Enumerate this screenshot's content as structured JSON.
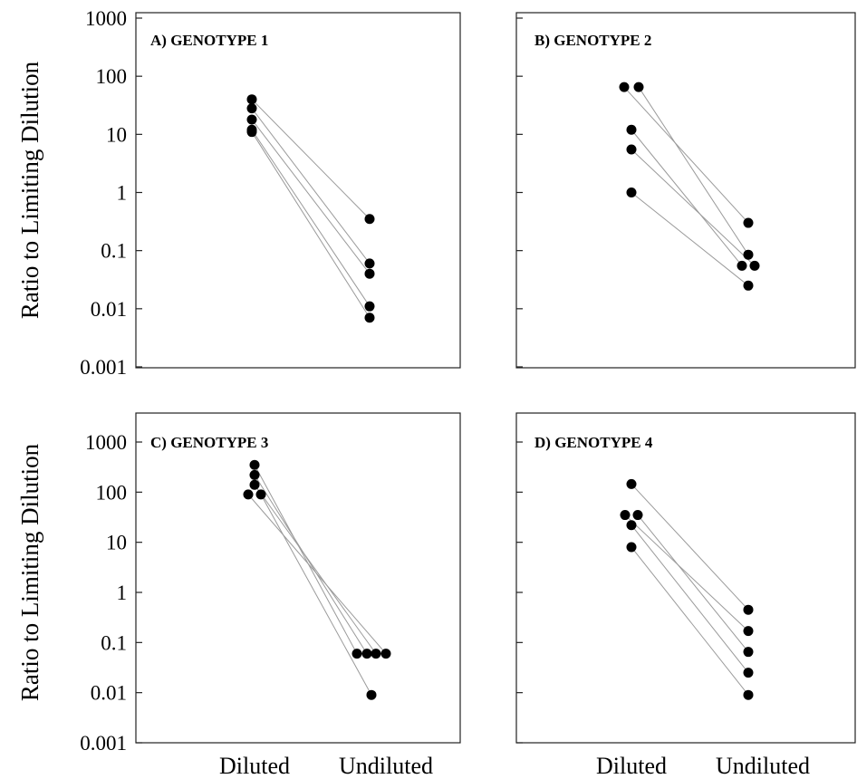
{
  "ylabel": "Ratio to Limiting Dilution",
  "categories": [
    "Diluted",
    "Undiluted"
  ],
  "chart_data": [
    {
      "type": "scatter",
      "title": "A) GENOTYPE 1",
      "yscale": "log",
      "ylim": [
        0.001,
        1000
      ],
      "yticks": [
        "0.001",
        "0.01",
        "0.1",
        "1",
        "10",
        "100",
        "1000"
      ],
      "categories": [
        "Diluted",
        "Undiluted"
      ],
      "pairs": [
        [
          40,
          0.35
        ],
        [
          28,
          0.06
        ],
        [
          18,
          0.04
        ],
        [
          12,
          0.011
        ],
        [
          11,
          0.007
        ]
      ]
    },
    {
      "type": "scatter",
      "title": "B) GENOTYPE 2",
      "yscale": "log",
      "ylim": [
        0.001,
        1000
      ],
      "yticks": [],
      "categories": [
        "Diluted",
        "Undiluted"
      ],
      "pairs": [
        [
          65,
          0.3
        ],
        [
          65,
          0.085
        ],
        [
          12,
          0.055
        ],
        [
          5.5,
          0.055
        ],
        [
          1,
          0.025
        ]
      ]
    },
    {
      "type": "scatter",
      "title": "C) GENOTYPE 3",
      "yscale": "log",
      "ylim": [
        0.001,
        1000
      ],
      "yticks": [
        "0.001",
        "0.01",
        "0.1",
        "1",
        "10",
        "100",
        "1000"
      ],
      "categories": [
        "Diluted",
        "Undiluted"
      ],
      "pairs": [
        [
          350,
          0.06
        ],
        [
          220,
          0.06
        ],
        [
          140,
          0.06
        ],
        [
          90,
          0.06
        ],
        [
          90,
          0.009
        ]
      ]
    },
    {
      "type": "scatter",
      "title": "D) GENOTYPE 4",
      "yscale": "log",
      "ylim": [
        0.001,
        1000
      ],
      "yticks": [],
      "categories": [
        "Diluted",
        "Undiluted"
      ],
      "pairs": [
        [
          145,
          0.45
        ],
        [
          35,
          0.17
        ],
        [
          35,
          0.065
        ],
        [
          22,
          0.025
        ],
        [
          8,
          0.009
        ]
      ]
    }
  ]
}
